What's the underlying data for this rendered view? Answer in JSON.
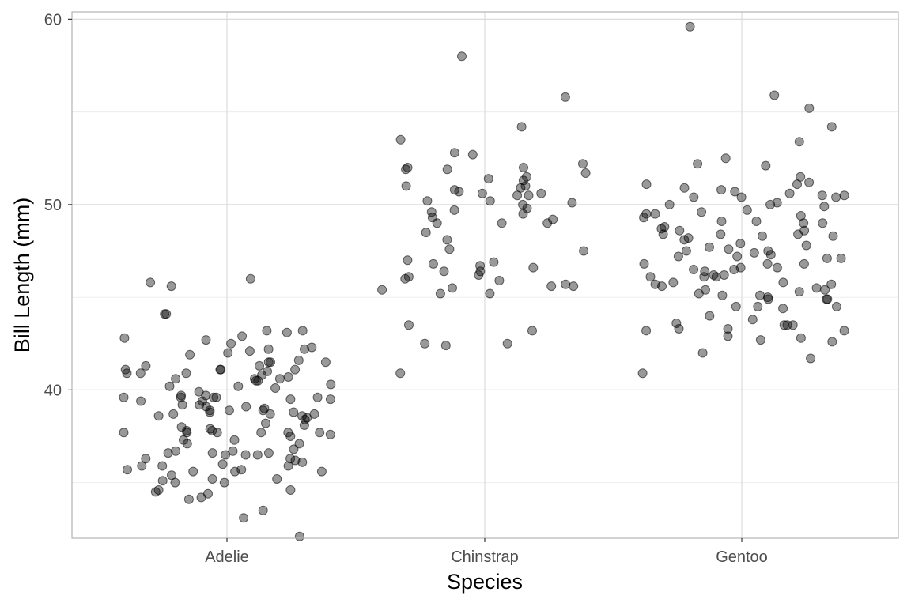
{
  "chart_data": {
    "type": "scatter",
    "title": "",
    "xlabel": "Species",
    "ylabel": "Bill Length (mm)",
    "ylim": [
      32,
      60.4
    ],
    "grid": true,
    "legend": "none",
    "point_color": "#000000",
    "point_opacity": 0.4,
    "x_tick_labels": [
      "Adelie",
      "Chinstrap",
      "Gentoo"
    ],
    "y_tick_values": [
      40,
      50,
      60
    ],
    "y_tick_labels": [
      "40",
      "50",
      "60"
    ],
    "y_minor_values": [
      35,
      45,
      55
    ],
    "categories": [
      "Adelie",
      "Chinstrap",
      "Gentoo"
    ],
    "series": [
      {
        "category": "Adelie",
        "values": [
          41.3,
          40.9,
          40.6,
          39.5,
          39.0,
          38.9,
          38.6,
          38.5,
          38.7,
          36.2,
          35.2,
          35.6,
          35.9,
          35.1,
          33.1,
          45.6,
          44.1,
          43.1,
          42.2,
          41.6,
          41.3,
          41.1,
          40.1,
          39.9,
          39.6,
          39.2,
          38.7,
          38.1,
          37.9,
          37.8,
          36.8,
          34.6,
          34.5,
          34.1,
          34.2,
          42.0,
          41.5,
          41.1,
          40.6,
          40.2,
          39.6,
          38.4,
          38.8,
          37.7,
          37.3,
          37.1,
          36.6,
          36.3,
          36.5,
          35.9,
          43.2,
          42.7,
          41.5,
          40.6,
          39.4,
          39.1,
          38.9,
          37.7,
          36.6,
          35.7,
          35.0,
          45.8,
          40.8,
          39.6,
          39.2,
          39.7,
          38.8,
          36.6,
          36.3,
          36.0,
          35.6,
          32.1,
          46.0,
          42.2,
          40.9,
          40.2,
          39.6,
          38.9,
          37.7,
          37.3,
          35.0,
          35.6,
          44.1,
          42.5,
          42.3,
          42.1,
          41.1,
          40.5,
          40.5,
          39.7,
          39.5,
          38.2,
          38.0,
          37.7,
          37.6,
          36.5,
          35.9,
          35.7,
          33.5,
          43.2,
          42.9,
          41.0,
          40.9,
          39.6,
          39.4,
          38.7,
          37.7,
          37.5,
          37.1,
          36.1,
          35.4,
          34.6,
          34.4,
          35.2,
          42.8,
          41.9,
          41.5,
          41.1,
          40.7,
          40.3,
          39.1,
          38.6,
          37.8,
          37.7,
          36.7,
          36.7,
          36.5
        ]
      },
      {
        "category": "Chinstrap",
        "values": [
          52.0,
          50.9,
          50.6,
          50.5,
          50.1,
          50.0,
          47.0,
          45.9,
          42.5,
          54.2,
          52.7,
          51.9,
          51.3,
          50.8,
          50.7,
          49.6,
          47.6,
          46.0,
          46.9,
          52.2,
          51.5,
          51.4,
          49.2,
          49.0,
          48.1,
          46.7,
          46.4,
          46.1,
          45.7,
          45.5,
          45.4,
          42.5,
          58.0,
          53.5,
          52.0,
          51.9,
          51.0,
          50.6,
          50.5,
          49.8,
          49.7,
          48.5,
          46.2,
          45.6,
          42.4,
          40.9,
          55.8,
          52.8,
          51.7,
          50.2,
          49.3,
          49.0,
          47.5,
          46.8,
          46.6,
          46.4,
          45.6,
          45.2,
          45.2,
          43.2,
          50.2,
          51.0,
          49.5,
          49.0,
          43.5
        ]
      },
      {
        "category": "Gentoo",
        "values": [
          48.4,
          49.3,
          48.8,
          47.9,
          46.5,
          46.2,
          45.8,
          44.9,
          44.5,
          44.0,
          43.3,
          42.9,
          42.7,
          42.0,
          42.6,
          54.2,
          52.1,
          50.8,
          50.5,
          50.4,
          49.5,
          49.1,
          48.4,
          48.3,
          47.1,
          46.8,
          46.2,
          46.1,
          45.8,
          45.4,
          45.2,
          44.5,
          43.5,
          43.2,
          42.8,
          50.7,
          50.1,
          49.9,
          49.6,
          49.4,
          48.3,
          47.5,
          47.4,
          45.7,
          44.9,
          43.5,
          40.9,
          55.9,
          52.2,
          51.2,
          50.6,
          50.4,
          49.7,
          49.0,
          48.6,
          48.4,
          48.1,
          47.1,
          46.8,
          46.5,
          46.4,
          45.5,
          45.3,
          44.4,
          43.5,
          43.3,
          41.7,
          55.2,
          51.1,
          50.9,
          50.0,
          49.5,
          48.2,
          47.7,
          47.2,
          46.6,
          46.1,
          45.4,
          45.0,
          44.9,
          43.6,
          43.2,
          59.6,
          51.5,
          50.4,
          50.0,
          49.1,
          48.7,
          47.8,
          47.6,
          47.3,
          46.8,
          46.1,
          45.6,
          45.1,
          43.8,
          53.4,
          52.5,
          51.1,
          50.5,
          49.0,
          48.6,
          47.5,
          47.2,
          46.6,
          45.7,
          45.1,
          44.5
        ]
      }
    ]
  }
}
